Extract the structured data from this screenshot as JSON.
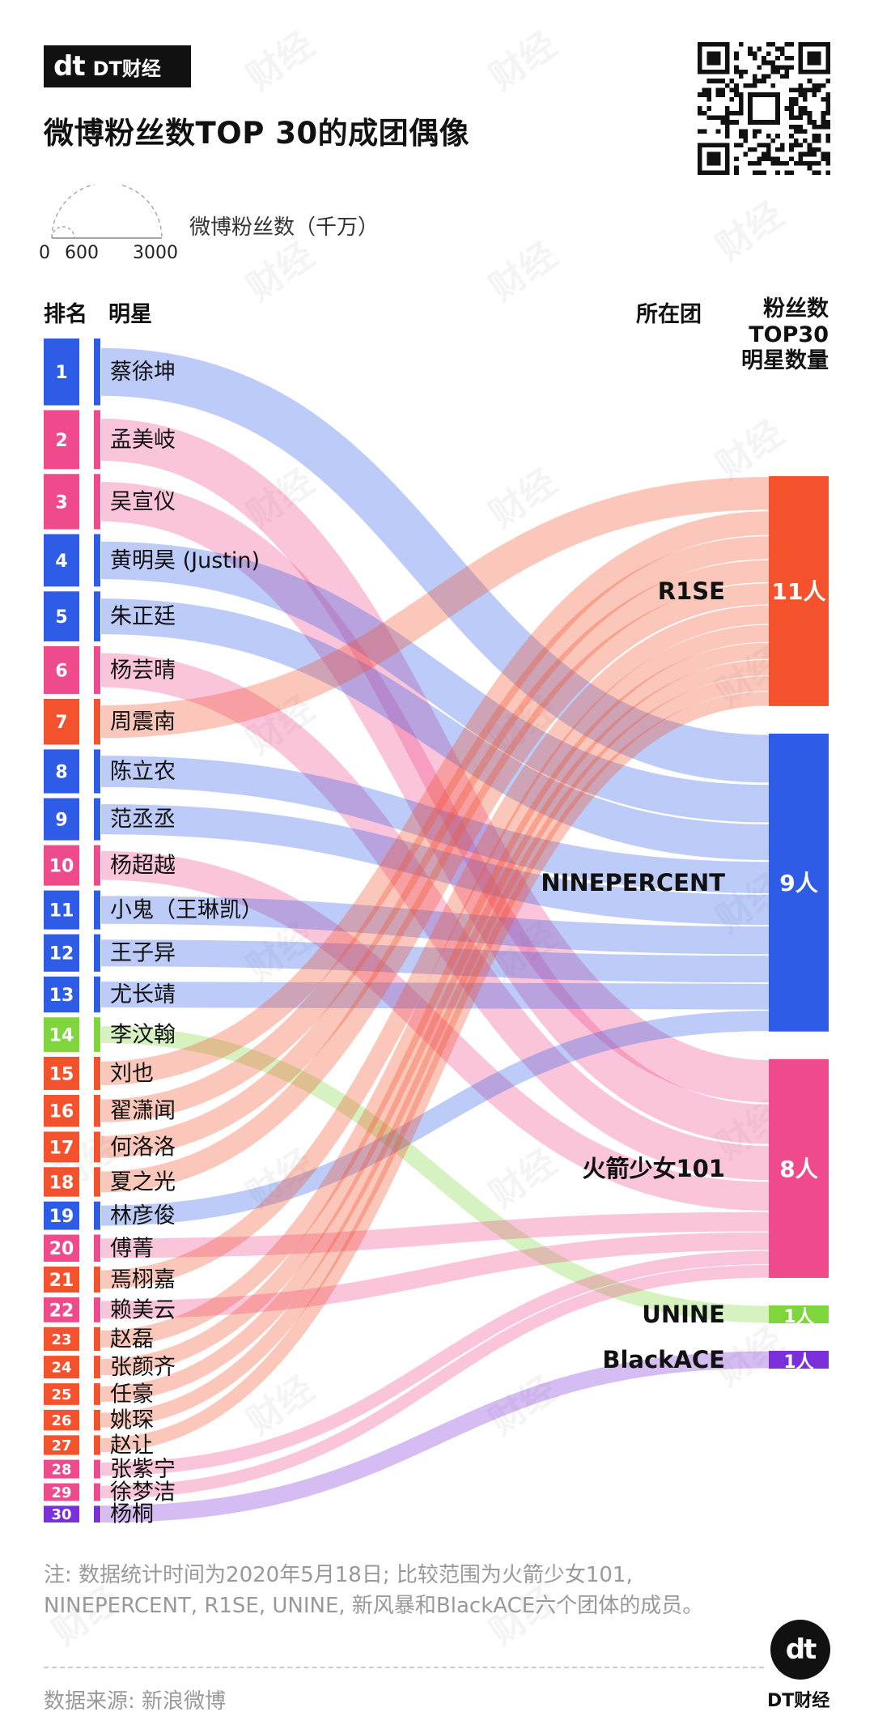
{
  "header": {
    "logo_mark": "dt",
    "logo_text": "DT财经",
    "title": "微博粉丝数TOP 30的成团偶像",
    "legend_label": "微博粉丝数（千万）",
    "scale_ticks": [
      "0",
      "600",
      "3000"
    ]
  },
  "columns": {
    "rank": "排名",
    "star": "明星",
    "group": "所在团",
    "count_lines": [
      "粉丝数",
      "TOP30",
      "明星数量"
    ]
  },
  "colors": {
    "NINEPERCENT": "#2e5ce6",
    "火箭少女101": "#ee4a8c",
    "R1SE": "#f4522d",
    "UNINE": "#7ed63c",
    "BlackACE": "#7b2fdb"
  },
  "chart_data": {
    "type": "sankey",
    "title": "微博粉丝数TOP 30的成团偶像",
    "nodes_left": [
      {
        "rank": "1",
        "name": "蔡徐坤",
        "group": "NINEPERCENT"
      },
      {
        "rank": "2",
        "name": "孟美岐",
        "group": "火箭少女101"
      },
      {
        "rank": "3",
        "name": "吴宣仪",
        "group": "火箭少女101"
      },
      {
        "rank": "4",
        "name": "黄明昊 (Justin)",
        "group": "NINEPERCENT"
      },
      {
        "rank": "5",
        "name": "朱正廷",
        "group": "NINEPERCENT"
      },
      {
        "rank": "6",
        "name": "杨芸晴",
        "group": "火箭少女101"
      },
      {
        "rank": "7",
        "name": "周震南",
        "group": "R1SE"
      },
      {
        "rank": "8",
        "name": "陈立农",
        "group": "NINEPERCENT"
      },
      {
        "rank": "9",
        "name": "范丞丞",
        "group": "NINEPERCENT"
      },
      {
        "rank": "10",
        "name": "杨超越",
        "group": "火箭少女101"
      },
      {
        "rank": "11",
        "name": "小鬼（王琳凯）",
        "group": "NINEPERCENT"
      },
      {
        "rank": "12",
        "name": "王子异",
        "group": "NINEPERCENT"
      },
      {
        "rank": "13",
        "name": "尤长靖",
        "group": "NINEPERCENT"
      },
      {
        "rank": "14",
        "name": "李汶翰",
        "group": "UNINE"
      },
      {
        "rank": "15",
        "name": "刘也",
        "group": "R1SE"
      },
      {
        "rank": "16",
        "name": "翟潇闻",
        "group": "R1SE"
      },
      {
        "rank": "17",
        "name": "何洛洛",
        "group": "R1SE"
      },
      {
        "rank": "18",
        "name": "夏之光",
        "group": "R1SE"
      },
      {
        "rank": "19",
        "name": "林彦俊",
        "group": "NINEPERCENT"
      },
      {
        "rank": "20",
        "name": "傅菁",
        "group": "火箭少女101"
      },
      {
        "rank": "21",
        "name": "焉栩嘉",
        "group": "R1SE"
      },
      {
        "rank": "22",
        "name": "赖美云",
        "group": "火箭少女101"
      },
      {
        "rank": "23",
        "name": "赵磊",
        "group": "R1SE"
      },
      {
        "rank": "24",
        "name": "张颜齐",
        "group": "R1SE"
      },
      {
        "rank": "25",
        "name": "任豪",
        "group": "R1SE"
      },
      {
        "rank": "26",
        "name": "姚琛",
        "group": "R1SE"
      },
      {
        "rank": "27",
        "name": "赵让",
        "group": "R1SE"
      },
      {
        "rank": "28",
        "name": "张紫宁",
        "group": "火箭少女101"
      },
      {
        "rank": "29",
        "name": "徐梦洁",
        "group": "火箭少女101"
      },
      {
        "rank": "30",
        "name": "杨桐",
        "group": "BlackACE"
      }
    ],
    "nodes_right": [
      {
        "name": "R1SE",
        "count_label": "11人",
        "count": 11
      },
      {
        "name": "NINEPERCENT",
        "count_label": "9人",
        "count": 9
      },
      {
        "name": "火箭少女101",
        "count_label": "8人",
        "count": 8
      },
      {
        "name": "UNINE",
        "count_label": "1人",
        "count": 1
      },
      {
        "name": "BlackACE",
        "count_label": "1人",
        "count": 1
      }
    ],
    "legend": {
      "label": "微博粉丝数（千万）",
      "scale": [
        0,
        600,
        3000
      ]
    }
  },
  "footer": {
    "note_line1": "注: 数据统计时间为2020年5月18日; 比较范围为火箭少女101,",
    "note_line2": "NINEPERCENT, R1SE, UNINE, 新风暴和BlackACE六个团体的成员。",
    "source": "数据来源: 新浪微博",
    "brand_mark": "dt",
    "brand_name": "DT财经",
    "watermark": "财经"
  }
}
